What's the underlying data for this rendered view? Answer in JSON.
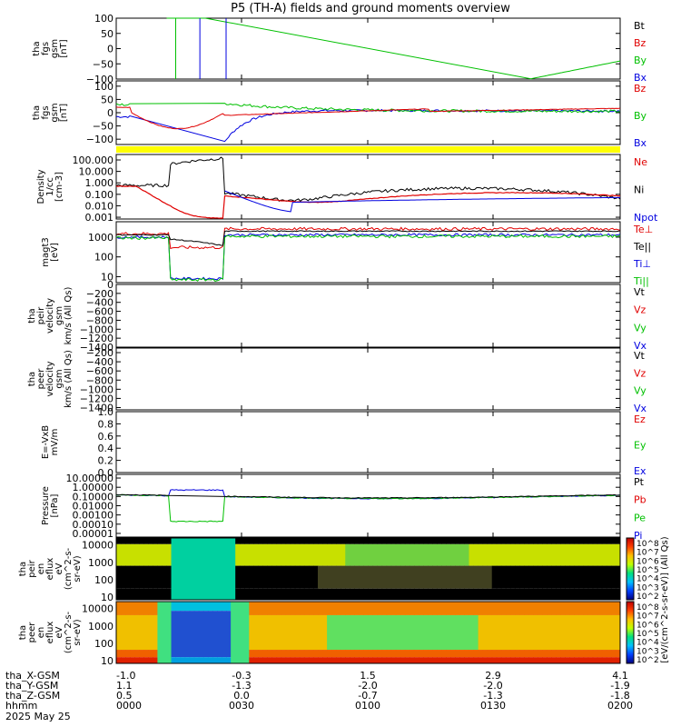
{
  "title": "P5 (TH-A) fields and ground moments overview",
  "chart_data": {
    "type": "line",
    "title": "P5 (TH-A) fields and ground moments overview",
    "time_ticks": [
      "0000",
      "0030",
      "0100",
      "0130",
      "0200"
    ],
    "panels": [
      {
        "id": "fgs",
        "ylabel": [
          "tha",
          "fgs",
          "gsm",
          "[nT]"
        ],
        "yticks": [
          {
            "label": "100",
            "value": 100
          },
          {
            "label": "50",
            "value": 50
          },
          {
            "label": "0",
            "value": 0
          },
          {
            "label": "−50",
            "value": -50
          },
          {
            "label": "−100",
            "value": -100
          }
        ],
        "ylim": [
          -100,
          100
        ],
        "legend": [
          {
            "label": "Bt",
            "color": "#000000"
          },
          {
            "label": "Bz",
            "color": "#e00000"
          },
          {
            "label": "By",
            "color": "#00c000"
          },
          {
            "label": "Bx",
            "color": "#0000e0"
          }
        ]
      },
      {
        "id": "fgs_dsl",
        "ylabel": [
          "tha",
          "fgs",
          "gsm",
          "[nT]"
        ],
        "yticks": [
          {
            "label": "100",
            "value": 100
          },
          {
            "label": "50",
            "value": 50
          },
          {
            "label": "0",
            "value": 0
          },
          {
            "label": "−50",
            "value": -50
          },
          {
            "label": "−100",
            "value": -100
          }
        ],
        "ylim": [
          -120,
          120
        ],
        "legend": [
          {
            "label": "Bz",
            "color": "#e00000"
          },
          {
            "label": "By",
            "color": "#00c000"
          },
          {
            "label": "Bx",
            "color": "#0000e0"
          }
        ]
      },
      {
        "id": "density",
        "ylabel": [
          "Density",
          "1/cc",
          "[cm-3]"
        ],
        "yticks": [
          {
            "label": "100.000",
            "value": 100
          },
          {
            "label": "10.000",
            "value": 10
          },
          {
            "label": "1.000",
            "value": 1
          },
          {
            "label": "0.100",
            "value": 0.1
          },
          {
            "label": "0.010",
            "value": 0.01
          },
          {
            "label": "0.001",
            "value": 0.001
          }
        ],
        "log": true,
        "ylim": [
          0.0007,
          300
        ],
        "legend": [
          {
            "label": "Ne",
            "color": "#e00000"
          },
          {
            "label": "Ni",
            "color": "#000000"
          },
          {
            "label": "Npot",
            "color": "#0000e0"
          }
        ]
      },
      {
        "id": "temp",
        "ylabel": [
          "magt3",
          "[eV]"
        ],
        "yticks": [
          {
            "label": "1000",
            "value": 1000
          },
          {
            "label": "100",
            "value": 100
          },
          {
            "label": "10",
            "value": 10
          }
        ],
        "log": true,
        "ylim": [
          5,
          6000
        ],
        "legend": [
          {
            "label": "Te⊥",
            "color": "#e00000"
          },
          {
            "label": "Te||",
            "color": "#000000"
          },
          {
            "label": "Ti⊥",
            "color": "#0000e0"
          },
          {
            "label": "Ti||",
            "color": "#00c000"
          }
        ]
      },
      {
        "id": "peir_vel",
        "ylabel": [
          "tha",
          "peir",
          "velocity",
          "gsm",
          "km/s (All Qs)"
        ],
        "yticks": [
          {
            "label": "0",
            "value": 0
          },
          {
            "label": "−200",
            "value": -200
          },
          {
            "label": "−400",
            "value": -400
          },
          {
            "label": "−600",
            "value": -600
          },
          {
            "label": "−800",
            "value": -800
          },
          {
            "label": "−1000",
            "value": -1000
          },
          {
            "label": "−1200",
            "value": -1200
          },
          {
            "label": "−1400",
            "value": -1400
          }
        ],
        "ylim": [
          -1400,
          0
        ],
        "legend": [
          {
            "label": "Vt",
            "color": "#000000"
          },
          {
            "label": "Vz",
            "color": "#e00000"
          },
          {
            "label": "Vy",
            "color": "#00c000"
          },
          {
            "label": "Vx",
            "color": "#0000e0"
          }
        ]
      },
      {
        "id": "peer_vel",
        "ylabel": [
          "tha",
          "peer",
          "velocity",
          "gsm",
          "km/s (All Qs)"
        ],
        "yticks": [
          {
            "label": "−200",
            "value": -200
          },
          {
            "label": "−400",
            "value": -400
          },
          {
            "label": "−600",
            "value": -600
          },
          {
            "label": "−800",
            "value": -800
          },
          {
            "label": "−1000",
            "value": -1000
          },
          {
            "label": "−1200",
            "value": -1200
          },
          {
            "label": "−1400",
            "value": -1400
          }
        ],
        "ylim": [
          -1450,
          -100
        ],
        "legend": [
          {
            "label": "Vt",
            "color": "#000000"
          },
          {
            "label": "Vz",
            "color": "#e00000"
          },
          {
            "label": "Vy",
            "color": "#00c000"
          },
          {
            "label": "Vx",
            "color": "#0000e0"
          }
        ]
      },
      {
        "id": "efield",
        "ylabel": [
          "E=-VxB",
          "mV/m"
        ],
        "yticks": [
          {
            "label": "1.0",
            "value": 1.0
          },
          {
            "label": "0.8",
            "value": 0.8
          },
          {
            "label": "0.6",
            "value": 0.6
          },
          {
            "label": "0.4",
            "value": 0.4
          },
          {
            "label": "0.2",
            "value": 0.2
          },
          {
            "label": "0.0",
            "value": 0.0
          }
        ],
        "ylim": [
          0,
          1
        ],
        "legend": [
          {
            "label": "Ez",
            "color": "#e00000"
          },
          {
            "label": "Ey",
            "color": "#00c000"
          },
          {
            "label": "Ex",
            "color": "#0000e0"
          }
        ]
      },
      {
        "id": "pressure",
        "ylabel": [
          "Pressure",
          "[nPa]"
        ],
        "yticks": [
          {
            "label": "10.00000",
            "value": 10
          },
          {
            "label": "1.00000",
            "value": 1
          },
          {
            "label": "0.10000",
            "value": 0.1
          },
          {
            "label": "0.01000",
            "value": 0.01
          },
          {
            "label": "0.00100",
            "value": 0.001
          },
          {
            "label": "0.00010",
            "value": 0.0001
          },
          {
            "label": "0.00001",
            "value": 1e-05
          }
        ],
        "log": true,
        "ylim": [
          4e-06,
          25
        ],
        "legend": [
          {
            "label": "Pt",
            "color": "#000000"
          },
          {
            "label": "Pb",
            "color": "#e00000"
          },
          {
            "label": "Pe",
            "color": "#00c000"
          },
          {
            "label": "Pi",
            "color": "#0000e0"
          }
        ]
      },
      {
        "id": "peir_spec",
        "ylabel": [
          "tha",
          "peir",
          "en",
          "eflux",
          "eV",
          "(cm^2-s-",
          "sr-eV)"
        ],
        "yticks": [
          {
            "label": "10000",
            "value": 10000
          },
          {
            "label": "1000",
            "value": 1000
          },
          {
            "label": "100",
            "value": 100
          },
          {
            "label": "10",
            "value": 10
          }
        ],
        "log": true,
        "ylim": [
          7,
          25000
        ]
      },
      {
        "id": "peer_spec",
        "ylabel": [
          "tha",
          "peer",
          "en",
          "eflux",
          "eV",
          "(cm^2-s-",
          "sr-eV)"
        ],
        "yticks": [
          {
            "label": "10000",
            "value": 10000
          },
          {
            "label": "1000",
            "value": 1000
          },
          {
            "label": "100",
            "value": 100
          },
          {
            "label": "10",
            "value": 10
          }
        ],
        "log": true,
        "ylim": [
          7,
          25000
        ]
      }
    ],
    "colorbar": {
      "label": "[eV/(cm^2-s-sr-eV)] (All Qs)",
      "ticks": [
        "10^8",
        "10^7",
        "10^6",
        "10^5",
        "10^4",
        "10^3",
        "10^2"
      ],
      "ticks2": [
        "10^8",
        "10^7",
        "10^6",
        "10^5",
        "10^4",
        "10^3",
        "10^2"
      ]
    },
    "ephemeris": {
      "rows": [
        {
          "label": "tha_X-GSM",
          "values": [
            "-1.0",
            "-0.3",
            "1.5",
            "2.9",
            "4.1"
          ]
        },
        {
          "label": "tha_Y-GSM",
          "values": [
            "1.1",
            "-1.3",
            "-2.0",
            "-2.0",
            "-1.9"
          ]
        },
        {
          "label": "tha_Z-GSM",
          "values": [
            "0.5",
            "0.0",
            "-0.7",
            "-1.3",
            "-1.8"
          ]
        },
        {
          "label": "hhmm",
          "values": [
            "0000",
            "0030",
            "0100",
            "0130",
            "0200"
          ]
        }
      ],
      "date": "2025 May 25"
    }
  }
}
